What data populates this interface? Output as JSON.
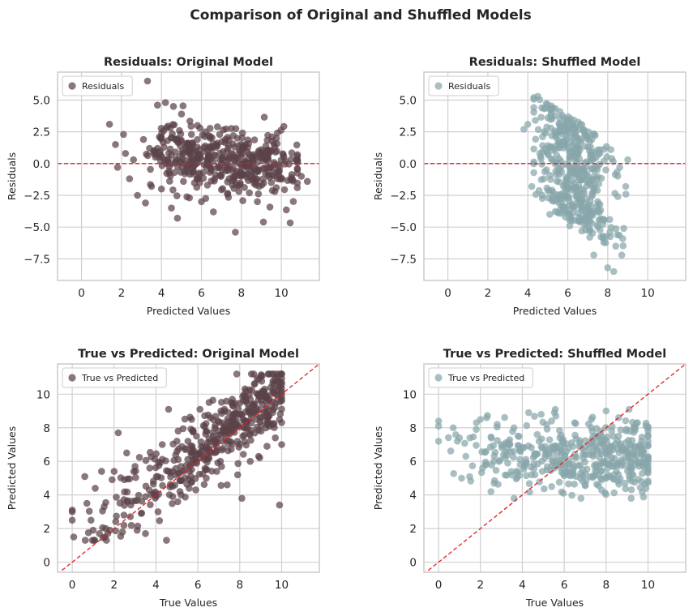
{
  "figure": {
    "title": "Comparison of Original and Shuffled Models"
  },
  "colors": {
    "original": "#5c4349",
    "shuffled": "#88a6ab",
    "reference_line": "#e41a1c",
    "grid": "#d0d0d0",
    "axes_edge": "#cccccc"
  },
  "chart_data": [
    {
      "id": "res-orig",
      "type": "scatter",
      "color_key": "original",
      "seed": 11,
      "title": "Residuals: Original Model",
      "xlabel": "Predicted Values",
      "ylabel": "Residuals",
      "xlim": [
        -1.2,
        11.9
      ],
      "ylim": [
        -9.2,
        7.2
      ],
      "xticks": [
        0,
        2,
        4,
        6,
        8,
        10
      ],
      "xtick_labels": [
        "0",
        "2",
        "4",
        "6",
        "8",
        "10"
      ],
      "yticks": [
        5,
        2.5,
        0,
        -2.5,
        -5,
        -7.5
      ],
      "ytick_labels": [
        "5.0",
        "2.5",
        "0.0",
        "−2.5",
        "−5.0",
        "−7.5"
      ],
      "reference": {
        "kind": "horizontal",
        "y": 0
      },
      "legend": {
        "label": "Residuals",
        "position": "upper-left"
      },
      "series": [
        {
          "name": "Residuals",
          "points": [
            [
              1.4,
              3.1
            ],
            [
              1.7,
              1.5
            ],
            [
              1.8,
              -0.3
            ],
            [
              2.1,
              2.3
            ],
            [
              2.2,
              0.8
            ],
            [
              2.4,
              -1.2
            ],
            [
              2.6,
              0.3
            ],
            [
              2.8,
              -2.5
            ],
            [
              3.1,
              1.9
            ],
            [
              3.2,
              -3.1
            ],
            [
              3.3,
              6.5
            ],
            [
              3.4,
              1.2
            ],
            [
              3.5,
              -1.8
            ],
            [
              3.7,
              0.5
            ],
            [
              3.8,
              4.6
            ],
            [
              3.9,
              2.1
            ],
            [
              4.0,
              -2.0
            ],
            [
              4.2,
              4.8
            ],
            [
              4.3,
              1.8
            ],
            [
              4.5,
              -3.5
            ],
            [
              4.6,
              4.5
            ],
            [
              4.7,
              0.9
            ],
            [
              4.8,
              -4.3
            ],
            [
              4.9,
              2.6
            ],
            [
              5.0,
              3.9
            ],
            [
              5.1,
              -1.4
            ],
            [
              5.3,
              1.6
            ],
            [
              5.4,
              -2.7
            ],
            [
              5.5,
              2.3
            ],
            [
              5.6,
              -0.6
            ],
            [
              5.8,
              3.0
            ],
            [
              5.9,
              1.1
            ],
            [
              6.0,
              -3.0
            ],
            [
              6.2,
              2.5
            ],
            [
              6.3,
              -1.7
            ],
            [
              6.5,
              1.3
            ],
            [
              6.6,
              -3.8
            ],
            [
              6.8,
              2.9
            ],
            [
              7.0,
              -0.9
            ],
            [
              7.2,
              1.9
            ],
            [
              7.3,
              -2.4
            ],
            [
              7.5,
              0.8
            ],
            [
              7.7,
              -5.4
            ],
            [
              7.8,
              2.0
            ],
            [
              8.0,
              -1.0
            ],
            [
              8.2,
              1.5
            ],
            [
              8.4,
              -2.3
            ],
            [
              8.6,
              0.6
            ],
            [
              8.8,
              -3.0
            ],
            [
              9.0,
              1.1
            ],
            [
              9.1,
              -4.6
            ],
            [
              9.3,
              0.5
            ],
            [
              9.5,
              -1.5
            ],
            [
              9.7,
              0.9
            ],
            [
              9.9,
              -0.6
            ],
            [
              10.2,
              0.2
            ],
            [
              10.5,
              -1.1
            ],
            [
              10.8,
              -0.4
            ],
            [
              11.0,
              -1.0
            ],
            [
              11.3,
              -1.4
            ]
          ]
        }
      ],
      "generated": {
        "count": 430,
        "x_min": 1.5,
        "x_max": 10.8,
        "mode": "residual_original"
      }
    },
    {
      "id": "res-shuf",
      "type": "scatter",
      "color_key": "shuffled",
      "seed": 23,
      "title": "Residuals: Shuffled Model",
      "xlabel": "Predicted Values",
      "ylabel": "Residuals",
      "xlim": [
        -1.2,
        11.9
      ],
      "ylim": [
        -9.2,
        7.2
      ],
      "xticks": [
        0,
        2,
        4,
        6,
        8,
        10
      ],
      "xtick_labels": [
        "0",
        "2",
        "4",
        "6",
        "8",
        "10"
      ],
      "yticks": [
        5,
        2.5,
        0,
        -2.5,
        -5,
        -7.5
      ],
      "ytick_labels": [
        "5.0",
        "2.5",
        "0.0",
        "−2.5",
        "−5.0",
        "−7.5"
      ],
      "reference": {
        "kind": "horizontal",
        "y": 0
      },
      "legend": {
        "label": "Residuals",
        "position": "upper-left"
      },
      "series": [
        {
          "name": "Residuals",
          "points": [
            [
              3.8,
              2.7
            ],
            [
              4.0,
              3.1
            ],
            [
              4.2,
              -1.8
            ],
            [
              4.5,
              5.3
            ],
            [
              4.6,
              0.8
            ],
            [
              4.7,
              4.4
            ],
            [
              4.8,
              -1.2
            ],
            [
              5.0,
              3.6
            ],
            [
              5.1,
              -4.0
            ],
            [
              5.2,
              2.2
            ],
            [
              5.4,
              -0.6
            ],
            [
              5.5,
              -2.8
            ],
            [
              5.6,
              4.1
            ],
            [
              5.8,
              -3.6
            ],
            [
              5.9,
              1.5
            ],
            [
              6.1,
              -4.9
            ],
            [
              6.2,
              3.2
            ],
            [
              6.4,
              -2.2
            ],
            [
              6.5,
              0.9
            ],
            [
              6.7,
              -5.3
            ],
            [
              6.8,
              2.6
            ],
            [
              7.0,
              -1.5
            ],
            [
              7.1,
              -5.8
            ],
            [
              7.2,
              1.9
            ],
            [
              7.3,
              -7.2
            ],
            [
              7.5,
              -3.0
            ],
            [
              7.6,
              1.1
            ],
            [
              7.8,
              -6.2
            ],
            [
              7.9,
              -0.5
            ],
            [
              8.0,
              -8.2
            ],
            [
              8.1,
              -4.4
            ],
            [
              8.2,
              0.4
            ],
            [
              8.3,
              -8.5
            ],
            [
              8.4,
              -6.5
            ],
            [
              8.5,
              -2.6
            ],
            [
              8.6,
              -0.3
            ],
            [
              8.7,
              -7.2
            ],
            [
              8.8,
              -5.1
            ],
            [
              8.9,
              -1.8
            ],
            [
              9.0,
              0.3
            ]
          ]
        }
      ],
      "generated": {
        "count": 430,
        "x_min": 4.3,
        "x_max": 9.0,
        "mode": "residual_shuffled"
      }
    },
    {
      "id": "tvp-orig",
      "type": "scatter",
      "color_key": "original",
      "seed": 37,
      "title": "True vs Predicted: Original Model",
      "xlabel": "True Values",
      "ylabel": "Predicted Values",
      "xlim": [
        -0.7,
        11.8
      ],
      "ylim": [
        -0.6,
        11.8
      ],
      "xticks": [
        0,
        2,
        4,
        6,
        8,
        10
      ],
      "xtick_labels": [
        "0",
        "2",
        "4",
        "6",
        "8",
        "10"
      ],
      "yticks": [
        0,
        2,
        4,
        6,
        8,
        10
      ],
      "ytick_labels": [
        "0",
        "2",
        "4",
        "6",
        "8",
        "10"
      ],
      "reference": {
        "kind": "diagonal"
      },
      "legend": {
        "label": "True vs Predicted",
        "position": "upper-left"
      },
      "series": [
        {
          "name": "True vs Predicted",
          "points": [
            [
              0.0,
              3.1
            ],
            [
              0.0,
              2.5
            ],
            [
              0.0,
              3.0
            ],
            [
              0.6,
              5.1
            ],
            [
              0.7,
              3.5
            ],
            [
              0.9,
              2.5
            ],
            [
              1.0,
              1.9
            ],
            [
              1.1,
              4.4
            ],
            [
              1.3,
              1.7
            ],
            [
              1.4,
              5.4
            ],
            [
              1.6,
              2.0
            ],
            [
              1.8,
              1.9
            ],
            [
              2.0,
              5.4
            ],
            [
              2.2,
              7.7
            ],
            [
              2.4,
              1.8
            ],
            [
              2.6,
              6.5
            ],
            [
              2.8,
              3.4
            ],
            [
              3.0,
              5.7
            ],
            [
              3.1,
              1.9
            ],
            [
              3.3,
              2.9
            ],
            [
              3.5,
              1.7
            ],
            [
              3.7,
              5.6
            ],
            [
              3.9,
              4.1
            ],
            [
              4.1,
              3.0
            ],
            [
              4.3,
              7.0
            ],
            [
              4.5,
              1.3
            ],
            [
              4.6,
              9.1
            ],
            [
              4.8,
              3.9
            ],
            [
              5.0,
              7.2
            ],
            [
              5.2,
              4.0
            ],
            [
              5.4,
              6.7
            ],
            [
              5.7,
              8.5
            ],
            [
              5.9,
              4.3
            ],
            [
              6.1,
              9.1
            ],
            [
              6.4,
              5.0
            ],
            [
              6.6,
              8.6
            ],
            [
              6.9,
              5.4
            ],
            [
              7.1,
              9.0
            ],
            [
              7.4,
              4.6
            ],
            [
              7.6,
              9.5
            ],
            [
              7.9,
              5.2
            ],
            [
              8.1,
              3.8
            ],
            [
              8.3,
              10.2
            ],
            [
              8.5,
              6.0
            ],
            [
              8.7,
              10.6
            ],
            [
              8.9,
              6.3
            ],
            [
              9.1,
              10.1
            ],
            [
              9.3,
              6.9
            ],
            [
              9.5,
              10.0
            ],
            [
              9.7,
              7.4
            ],
            [
              9.8,
              11.0
            ],
            [
              9.9,
              3.4
            ],
            [
              9.9,
              11.2
            ],
            [
              10.0,
              9.6
            ],
            [
              10.0,
              7.0
            ],
            [
              9.9,
              8.5
            ],
            [
              9.8,
              9.9
            ],
            [
              10.0,
              10.6
            ]
          ]
        }
      ],
      "generated": {
        "count": 430,
        "x_min": 0.0,
        "x_max": 10.0,
        "mode": "tvp_original"
      }
    },
    {
      "id": "tvp-shuf",
      "type": "scatter",
      "color_key": "shuffled",
      "seed": 53,
      "title": "True vs Predicted: Shuffled Model",
      "xlabel": "True Values",
      "ylabel": "Predicted Values",
      "xlim": [
        -0.7,
        11.8
      ],
      "ylim": [
        -0.6,
        11.8
      ],
      "xticks": [
        0,
        2,
        4,
        6,
        8,
        10
      ],
      "xtick_labels": [
        "0",
        "2",
        "4",
        "6",
        "8",
        "10"
      ],
      "yticks": [
        0,
        2,
        4,
        6,
        8,
        10
      ],
      "ytick_labels": [
        "0",
        "2",
        "4",
        "6",
        "8",
        "10"
      ],
      "reference": {
        "kind": "diagonal"
      },
      "legend": {
        "label": "True vs Predicted",
        "position": "upper-left"
      },
      "series": [
        {
          "name": "True vs Predicted",
          "points": [
            [
              0.0,
              8.4
            ],
            [
              0.0,
              8.1
            ],
            [
              0.0,
              7.2
            ],
            [
              0.7,
              8.0
            ],
            [
              0.9,
              7.2
            ],
            [
              1.0,
              7.4
            ],
            [
              1.1,
              5.0
            ],
            [
              1.3,
              6.3
            ],
            [
              1.5,
              7.4
            ],
            [
              1.8,
              7.9
            ],
            [
              2.0,
              8.5
            ],
            [
              2.1,
              5.6
            ],
            [
              2.3,
              8.6
            ],
            [
              2.5,
              4.2
            ],
            [
              2.8,
              8.2
            ],
            [
              3.0,
              7.0
            ],
            [
              3.3,
              5.9
            ],
            [
              3.6,
              8.0
            ],
            [
              3.8,
              7.5
            ],
            [
              4.1,
              5.7
            ],
            [
              4.3,
              8.9
            ],
            [
              4.6,
              5.2
            ],
            [
              4.9,
              8.8
            ],
            [
              5.1,
              6.7
            ],
            [
              5.4,
              4.5
            ],
            [
              5.6,
              8.7
            ],
            [
              5.9,
              7.2
            ],
            [
              6.2,
              5.4
            ],
            [
              6.5,
              8.3
            ],
            [
              6.8,
              3.8
            ],
            [
              7.0,
              4.6
            ],
            [
              7.3,
              8.5
            ],
            [
              7.6,
              7.5
            ],
            [
              7.8,
              4.9
            ],
            [
              8.0,
              9.0
            ],
            [
              8.3,
              5.7
            ],
            [
              8.6,
              8.6
            ],
            [
              8.9,
              4.7
            ],
            [
              9.1,
              9.1
            ],
            [
              9.3,
              6.5
            ],
            [
              9.5,
              8.3
            ],
            [
              9.7,
              4.8
            ],
            [
              9.9,
              4.4
            ],
            [
              10.0,
              7.2
            ],
            [
              10.0,
              5.5
            ],
            [
              9.9,
              8.1
            ]
          ]
        }
      ],
      "generated": {
        "count": 430,
        "x_min": 0.0,
        "x_max": 10.0,
        "mode": "tvp_shuffled"
      }
    }
  ]
}
